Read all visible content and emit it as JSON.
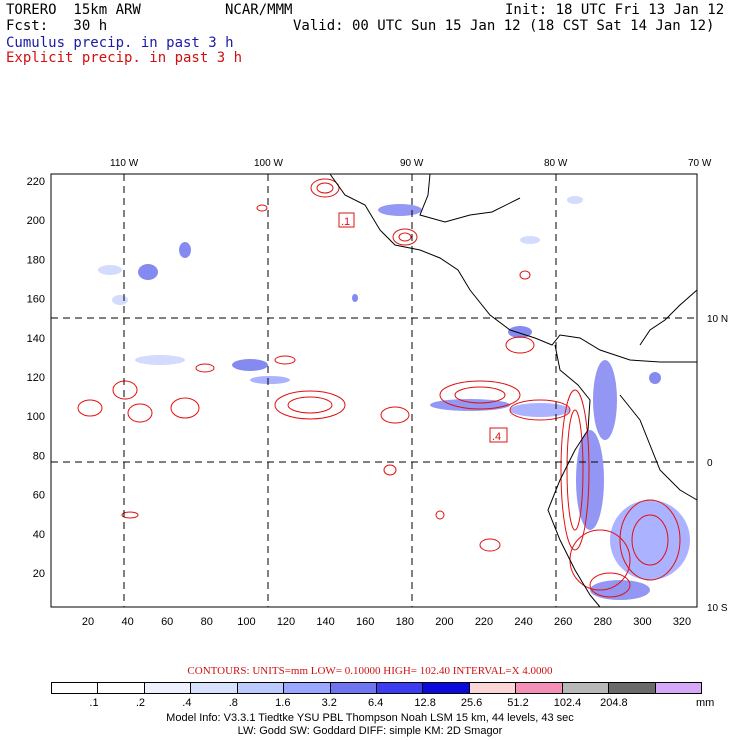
{
  "header": {
    "model": "TORERO  15km ARW",
    "org": "NCAR/MMM",
    "init": "Init: 18 UTC Fri 13 Jan 12",
    "fcst": "Fcst:   30 h",
    "valid": "Valid: 00 UTC Sun 15 Jan 12 (18 CST Sat 14 Jan 12)",
    "line_cumulus": "Cumulus precip. in past 3 h",
    "line_explicit": "Explicit precip. in past 3 h"
  },
  "axes": {
    "top_lon_labels": [
      "110 W",
      "100 W",
      "90 W",
      "80 W",
      "70 W"
    ],
    "right_lat_labels": [
      "10 N",
      "0",
      "10 S"
    ],
    "y_ticks": [
      "220",
      "200",
      "180",
      "160",
      "140",
      "120",
      "100",
      "80",
      "60",
      "40",
      "20"
    ],
    "x_ticks": [
      "20",
      "40",
      "60",
      "80",
      "100",
      "120",
      "140",
      "160",
      "180",
      "200",
      "220",
      "240",
      "260",
      "280",
      "300",
      "320"
    ],
    "map_labels": [
      ".1",
      ".4"
    ]
  },
  "legend": {
    "contours_line": "CONTOURS:  UNITS=mm  LOW= 0.10000        HIGH=  102.40      INTERVAL=X  4.0000",
    "labels": [
      ".1",
      ".2",
      ".4",
      ".8",
      "1.6",
      "3.2",
      "6.4",
      "12.8",
      "25.6",
      "51.2",
      "102.4",
      "204.8"
    ],
    "unit": "mm",
    "colors": [
      "#ffffff",
      "#ffffff",
      "#eef2ff",
      "#d8e2ff",
      "#bccbff",
      "#9aa8ff",
      "#6f75f0",
      "#3c3cf2",
      "#0a0adc",
      "#fad6d6",
      "#f590b8",
      "#b8b8b8",
      "#6a6a6a",
      "#d8a8f8"
    ]
  },
  "footer": {
    "line1": "Model Info: V3.3.1      Tiedtke YSU PBL  Thompson      Noah LSM  15 km,    44 levels,    43 sec",
    "line2": "LW: Godd SW: Goddard DIFF: simple KM: 2D Smagor"
  }
}
